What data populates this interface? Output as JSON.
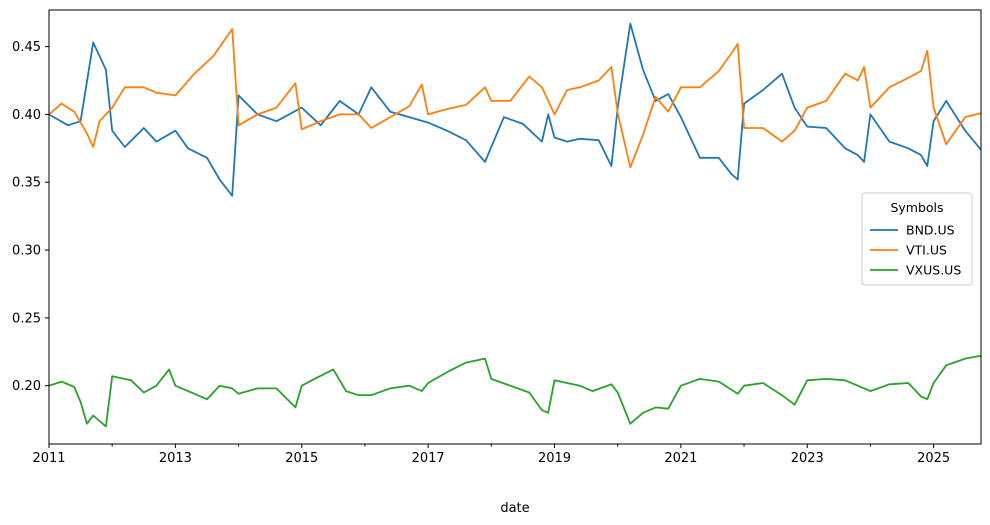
{
  "chart_data": {
    "type": "line",
    "title": "",
    "xlabel": "date",
    "ylabel": "",
    "xlim": [
      2011.0,
      2025.75
    ],
    "ylim": [
      0.157,
      0.477
    ],
    "x_ticks": [
      2011,
      2013,
      2015,
      2017,
      2019,
      2021,
      2023,
      2025
    ],
    "x_tick_labels": [
      "2011",
      "2013",
      "2015",
      "2017",
      "2019",
      "2021",
      "2023",
      "2025"
    ],
    "y_ticks": [
      0.2,
      0.25,
      0.3,
      0.35,
      0.4,
      0.45
    ],
    "y_tick_labels": [
      "0.20",
      "0.25",
      "0.30",
      "0.35",
      "0.40",
      "0.45"
    ],
    "grid": false,
    "legend": {
      "title": "Symbols",
      "placement": "center-right"
    },
    "series": [
      {
        "name": "BND.US",
        "color": "#1f77b4",
        "x": [
          2011.0,
          2011.3,
          2011.5,
          2011.7,
          2011.9,
          2012.0,
          2012.2,
          2012.5,
          2012.7,
          2013.0,
          2013.2,
          2013.5,
          2013.7,
          2013.9,
          2014.0,
          2014.3,
          2014.6,
          2015.0,
          2015.3,
          2015.6,
          2015.9,
          2016.1,
          2016.4,
          2016.7,
          2017.0,
          2017.3,
          2017.6,
          2017.9,
          2018.2,
          2018.5,
          2018.8,
          2018.9,
          2019.0,
          2019.2,
          2019.4,
          2019.7,
          2019.9,
          2020.0,
          2020.2,
          2020.4,
          2020.6,
          2020.8,
          2021.0,
          2021.3,
          2021.6,
          2021.8,
          2021.9,
          2022.0,
          2022.3,
          2022.6,
          2022.8,
          2023.0,
          2023.3,
          2023.6,
          2023.8,
          2023.9,
          2024.0,
          2024.3,
          2024.6,
          2024.8,
          2024.9,
          2025.0,
          2025.2,
          2025.5,
          2025.75
        ],
        "y": [
          0.4,
          0.392,
          0.395,
          0.453,
          0.433,
          0.388,
          0.376,
          0.39,
          0.38,
          0.388,
          0.375,
          0.368,
          0.352,
          0.34,
          0.414,
          0.4,
          0.395,
          0.405,
          0.392,
          0.41,
          0.4,
          0.42,
          0.402,
          0.398,
          0.394,
          0.388,
          0.381,
          0.365,
          0.398,
          0.393,
          0.38,
          0.4,
          0.383,
          0.38,
          0.382,
          0.381,
          0.362,
          0.405,
          0.467,
          0.433,
          0.41,
          0.415,
          0.398,
          0.368,
          0.368,
          0.356,
          0.352,
          0.408,
          0.418,
          0.43,
          0.405,
          0.391,
          0.39,
          0.375,
          0.37,
          0.365,
          0.4,
          0.38,
          0.375,
          0.37,
          0.362,
          0.395,
          0.41,
          0.388,
          0.374
        ]
      },
      {
        "name": "VTI.US",
        "color": "#ff7f0e",
        "x": [
          2011.0,
          2011.2,
          2011.4,
          2011.6,
          2011.7,
          2011.8,
          2012.0,
          2012.2,
          2012.5,
          2012.7,
          2013.0,
          2013.3,
          2013.6,
          2013.9,
          2014.0,
          2014.3,
          2014.6,
          2014.9,
          2015.0,
          2015.3,
          2015.6,
          2015.9,
          2016.1,
          2016.4,
          2016.7,
          2016.9,
          2017.0,
          2017.3,
          2017.6,
          2017.9,
          2018.0,
          2018.3,
          2018.6,
          2018.8,
          2019.0,
          2019.2,
          2019.4,
          2019.7,
          2019.9,
          2020.0,
          2020.2,
          2020.4,
          2020.6,
          2020.8,
          2021.0,
          2021.3,
          2021.6,
          2021.8,
          2021.9,
          2022.0,
          2022.3,
          2022.6,
          2022.8,
          2023.0,
          2023.3,
          2023.6,
          2023.8,
          2023.9,
          2024.0,
          2024.3,
          2024.6,
          2024.8,
          2024.9,
          2025.0,
          2025.2,
          2025.5,
          2025.75
        ],
        "y": [
          0.4,
          0.408,
          0.402,
          0.386,
          0.376,
          0.395,
          0.405,
          0.42,
          0.42,
          0.416,
          0.414,
          0.43,
          0.443,
          0.463,
          0.392,
          0.4,
          0.405,
          0.423,
          0.389,
          0.395,
          0.4,
          0.4,
          0.39,
          0.398,
          0.406,
          0.422,
          0.4,
          0.404,
          0.407,
          0.42,
          0.41,
          0.41,
          0.428,
          0.42,
          0.4,
          0.418,
          0.42,
          0.425,
          0.435,
          0.401,
          0.361,
          0.385,
          0.413,
          0.402,
          0.42,
          0.42,
          0.432,
          0.445,
          0.452,
          0.39,
          0.39,
          0.38,
          0.388,
          0.405,
          0.41,
          0.43,
          0.425,
          0.435,
          0.405,
          0.42,
          0.427,
          0.432,
          0.447,
          0.405,
          0.378,
          0.398,
          0.401
        ]
      },
      {
        "name": "VXUS.US",
        "color": "#2ca02c",
        "x": [
          2011.0,
          2011.2,
          2011.4,
          2011.5,
          2011.6,
          2011.7,
          2011.9,
          2012.0,
          2012.3,
          2012.5,
          2012.7,
          2012.9,
          2013.0,
          2013.2,
          2013.5,
          2013.7,
          2013.9,
          2014.0,
          2014.3,
          2014.6,
          2014.9,
          2015.0,
          2015.2,
          2015.5,
          2015.7,
          2015.9,
          2016.1,
          2016.4,
          2016.7,
          2016.9,
          2017.0,
          2017.3,
          2017.6,
          2017.9,
          2018.0,
          2018.3,
          2018.6,
          2018.8,
          2018.9,
          2019.0,
          2019.2,
          2019.4,
          2019.6,
          2019.9,
          2020.0,
          2020.2,
          2020.4,
          2020.6,
          2020.8,
          2021.0,
          2021.3,
          2021.6,
          2021.9,
          2022.0,
          2022.3,
          2022.6,
          2022.8,
          2023.0,
          2023.3,
          2023.6,
          2023.8,
          2024.0,
          2024.3,
          2024.6,
          2024.8,
          2024.9,
          2025.0,
          2025.2,
          2025.5,
          2025.75
        ],
        "y": [
          0.2,
          0.203,
          0.199,
          0.188,
          0.172,
          0.178,
          0.17,
          0.207,
          0.204,
          0.195,
          0.2,
          0.212,
          0.2,
          0.196,
          0.19,
          0.2,
          0.198,
          0.194,
          0.198,
          0.198,
          0.184,
          0.2,
          0.205,
          0.212,
          0.196,
          0.193,
          0.193,
          0.198,
          0.2,
          0.196,
          0.202,
          0.21,
          0.217,
          0.22,
          0.205,
          0.2,
          0.195,
          0.182,
          0.18,
          0.204,
          0.202,
          0.2,
          0.196,
          0.201,
          0.195,
          0.172,
          0.18,
          0.184,
          0.183,
          0.2,
          0.205,
          0.203,
          0.194,
          0.2,
          0.202,
          0.193,
          0.186,
          0.204,
          0.205,
          0.204,
          0.2,
          0.196,
          0.201,
          0.202,
          0.192,
          0.19,
          0.202,
          0.215,
          0.22,
          0.222
        ]
      }
    ]
  }
}
